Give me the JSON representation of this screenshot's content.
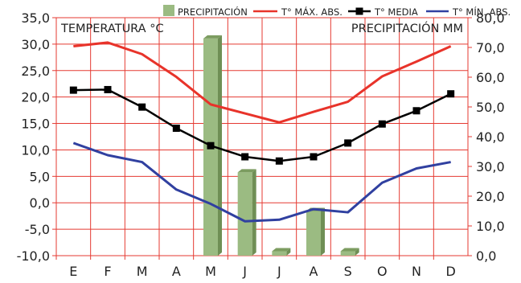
{
  "chart_data": {
    "type": "bar",
    "categories": [
      "E",
      "F",
      "M",
      "A",
      "M",
      "J",
      "J",
      "A",
      "S",
      "O",
      "N",
      "D"
    ],
    "left_axis": {
      "label": "TEMPERATURA °C",
      "range": [
        -10,
        35
      ],
      "ticks": [
        "35,0",
        "30,0",
        "25,0",
        "20,0",
        "15,0",
        "10,0",
        "5,0",
        "0,0",
        "-5,0",
        "-10,0"
      ]
    },
    "right_axis": {
      "label": "PRECIPITACIÓN MM",
      "range": [
        0,
        80
      ],
      "ticks": [
        "80,0",
        "70,0",
        "60,0",
        "50,0",
        "40,0",
        "30,0",
        "20,0",
        "10,0",
        "0,0"
      ]
    },
    "grid": true,
    "legend_position": "top-right",
    "series": [
      {
        "name": "PRECIPITACIÓN",
        "type": "bar",
        "axis": "right",
        "color": "#9bbb82",
        "values": [
          0,
          0,
          0,
          0,
          73,
          28,
          1.5,
          15,
          1.5,
          0,
          0,
          0
        ]
      },
      {
        "name": "T° MÁX. ABS.",
        "type": "line",
        "axis": "left",
        "color": "#e8332a",
        "values": [
          29.6,
          30.3,
          28.1,
          23.8,
          18.6,
          16.9,
          15.2,
          17.2,
          19.1,
          23.9,
          26.7,
          29.6
        ]
      },
      {
        "name": "T° MEDIA",
        "type": "line",
        "axis": "left",
        "color": "#000000",
        "marker": "square",
        "values": [
          21.3,
          21.4,
          18.1,
          14.1,
          10.8,
          8.7,
          7.9,
          8.7,
          11.3,
          14.9,
          17.4,
          20.6
        ]
      },
      {
        "name": "T° MÍN. ABS.",
        "type": "line",
        "axis": "left",
        "color": "#3040a0",
        "values": [
          11.3,
          9.0,
          7.7,
          2.5,
          -0.2,
          -3.5,
          -3.2,
          -1.2,
          -1.8,
          3.8,
          6.5,
          7.7
        ]
      }
    ]
  }
}
